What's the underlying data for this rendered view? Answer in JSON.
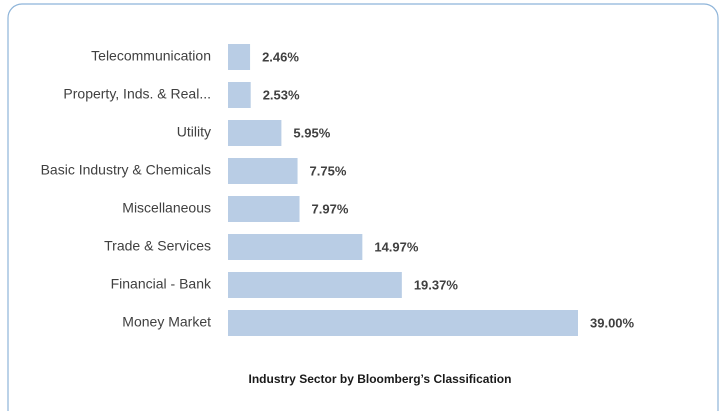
{
  "chart_data": {
    "type": "bar",
    "orientation": "horizontal",
    "title": "Industry Sector by Bloomberg’s Classification",
    "categories": [
      "Telecommunication",
      "Property, Inds. & Real...",
      "Utility",
      "Basic Industry & Chemicals",
      "Miscellaneous",
      "Trade & Services",
      "Financial - Bank",
      "Money Market"
    ],
    "values": [
      2.46,
      2.53,
      5.95,
      7.75,
      7.97,
      14.97,
      19.37,
      39.0
    ],
    "value_labels": [
      "2.46%",
      "2.53%",
      "5.95%",
      "7.75%",
      "7.97%",
      "14.97%",
      "19.37%",
      "39.00%"
    ],
    "color": "#b9cde5"
  }
}
